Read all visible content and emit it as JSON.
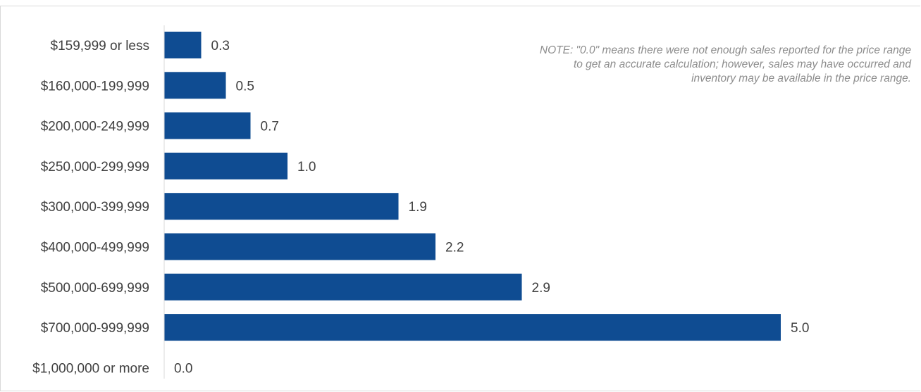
{
  "chart_data": {
    "type": "bar",
    "orientation": "horizontal",
    "categories": [
      "$159,999 or less",
      "$160,000-199,999",
      "$200,000-249,999",
      "$250,000-299,999",
      "$300,000-399,999",
      "$400,000-499,999",
      "$500,000-699,999",
      "$700,000-999,999",
      "$1,000,000 or more"
    ],
    "values": [
      0.3,
      0.5,
      0.7,
      1.0,
      1.9,
      2.2,
      2.9,
      5.0,
      0.0
    ],
    "value_labels": [
      "0.3",
      "0.5",
      "0.7",
      "1.0",
      "1.9",
      "2.2",
      "2.9",
      "5.0",
      "0.0"
    ],
    "xlim": [
      0,
      5.0
    ],
    "grid": false,
    "legend": "none",
    "bar_color": "#0f4c92",
    "note": "NOTE: \"0.0\" means there were not enough sales reported for the price range to get an accurate calculation;  however, sales may have occurred and inventory may be available in the price range."
  }
}
